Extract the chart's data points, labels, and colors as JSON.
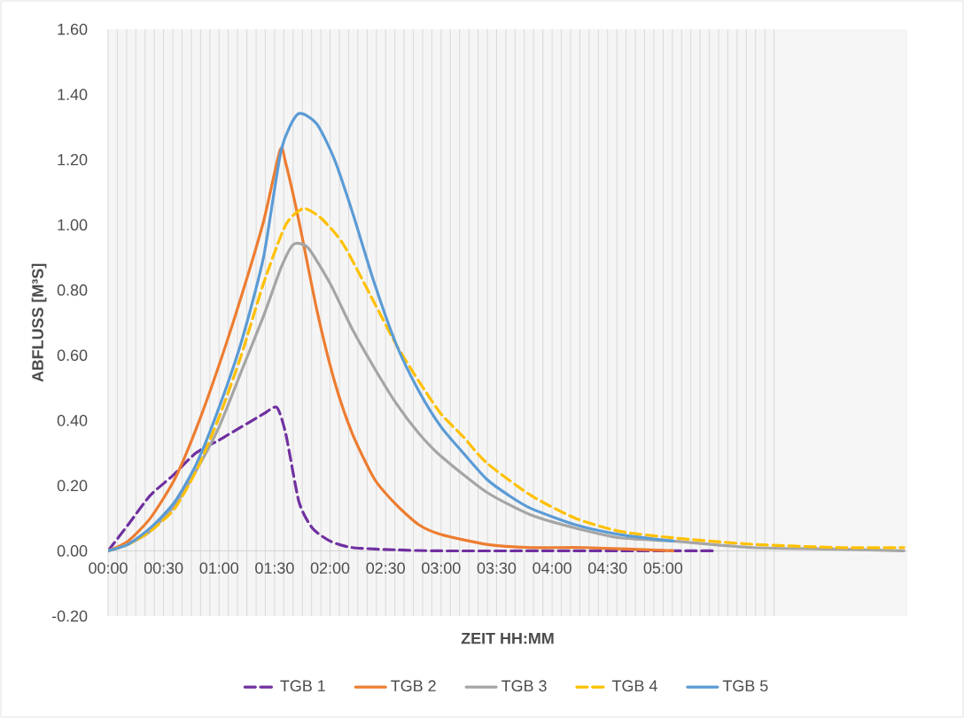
{
  "chart_data": {
    "type": "line",
    "xlabel": "ZEIT HH:MM",
    "ylabel": "ABFLUSS [M³S]",
    "xlim": [
      0,
      7.2
    ],
    "ylim": [
      -0.2,
      1.6
    ],
    "xticks": [
      {
        "value": 0,
        "label": "00:00"
      },
      {
        "value": 0.0833,
        "label": null
      },
      {
        "value": 0.1667,
        "label": null
      },
      {
        "value": 0.25,
        "label": null
      },
      {
        "value": 0.3333,
        "label": null
      },
      {
        "value": 0.4167,
        "label": null
      },
      {
        "value": 0.5,
        "label": "00:30"
      },
      {
        "value": 0.5833,
        "label": null
      },
      {
        "value": 0.6667,
        "label": null
      },
      {
        "value": 0.75,
        "label": null
      },
      {
        "value": 0.8333,
        "label": null
      },
      {
        "value": 0.9167,
        "label": null
      },
      {
        "value": 1,
        "label": "01:00"
      },
      {
        "value": 1.0833,
        "label": null
      },
      {
        "value": 1.1667,
        "label": null
      },
      {
        "value": 1.25,
        "label": null
      },
      {
        "value": 1.3333,
        "label": null
      },
      {
        "value": 1.4167,
        "label": null
      },
      {
        "value": 1.5,
        "label": "01:30"
      },
      {
        "value": 1.5833,
        "label": null
      },
      {
        "value": 1.6667,
        "label": null
      },
      {
        "value": 1.75,
        "label": null
      },
      {
        "value": 1.8333,
        "label": null
      },
      {
        "value": 1.9167,
        "label": null
      },
      {
        "value": 2,
        "label": "02:00"
      },
      {
        "value": 2.0833,
        "label": null
      },
      {
        "value": 2.1667,
        "label": null
      },
      {
        "value": 2.25,
        "label": null
      },
      {
        "value": 2.3333,
        "label": null
      },
      {
        "value": 2.4167,
        "label": null
      },
      {
        "value": 2.5,
        "label": "02:30"
      },
      {
        "value": 2.5833,
        "label": null
      },
      {
        "value": 2.6667,
        "label": null
      },
      {
        "value": 2.75,
        "label": null
      },
      {
        "value": 2.8333,
        "label": null
      },
      {
        "value": 2.9167,
        "label": null
      },
      {
        "value": 3,
        "label": "03:00"
      },
      {
        "value": 3.0833,
        "label": null
      },
      {
        "value": 3.1667,
        "label": null
      },
      {
        "value": 3.25,
        "label": null
      },
      {
        "value": 3.3333,
        "label": null
      },
      {
        "value": 3.4167,
        "label": null
      },
      {
        "value": 3.5,
        "label": "03:30"
      },
      {
        "value": 3.5833,
        "label": null
      },
      {
        "value": 3.6667,
        "label": null
      },
      {
        "value": 3.75,
        "label": null
      },
      {
        "value": 3.8333,
        "label": null
      },
      {
        "value": 3.9167,
        "label": null
      },
      {
        "value": 4,
        "label": "04:00"
      },
      {
        "value": 4.0833,
        "label": null
      },
      {
        "value": 4.1667,
        "label": null
      },
      {
        "value": 4.25,
        "label": null
      },
      {
        "value": 4.3333,
        "label": null
      },
      {
        "value": 4.4167,
        "label": null
      },
      {
        "value": 4.5,
        "label": "04:30"
      },
      {
        "value": 4.5833,
        "label": null
      },
      {
        "value": 4.6667,
        "label": null
      },
      {
        "value": 4.75,
        "label": null
      },
      {
        "value": 4.8333,
        "label": null
      },
      {
        "value": 4.9167,
        "label": null
      },
      {
        "value": 5,
        "label": "05:00"
      },
      {
        "value": 5.0833,
        "label": null
      },
      {
        "value": 5.1667,
        "label": null
      },
      {
        "value": 5.25,
        "label": null
      },
      {
        "value": 5.3333,
        "label": null
      },
      {
        "value": 5.4167,
        "label": null
      },
      {
        "value": 5.5,
        "label": null
      },
      {
        "value": 5.5833,
        "label": null
      },
      {
        "value": 5.6667,
        "label": null
      },
      {
        "value": 5.75,
        "label": null
      },
      {
        "value": 5.8333,
        "label": null
      },
      {
        "value": 5.9167,
        "label": null
      },
      {
        "value": 6,
        "label": null
      }
    ],
    "yticks": [
      {
        "value": -0.2,
        "label": "-0.20"
      },
      {
        "value": 0,
        "label": "0.00"
      },
      {
        "value": 0.2,
        "label": "0.20"
      },
      {
        "value": 0.4,
        "label": "0.40"
      },
      {
        "value": 0.6,
        "label": "0.60"
      },
      {
        "value": 0.8,
        "label": "0.80"
      },
      {
        "value": 1.0,
        "label": "1.00"
      },
      {
        "value": 1.2,
        "label": "1.20"
      },
      {
        "value": 1.4,
        "label": "1.40"
      },
      {
        "value": 1.6,
        "label": "1.60"
      }
    ],
    "grid": "x",
    "legend": "bottom",
    "series": [
      {
        "name": "TGB 1",
        "color": "#7030a0",
        "line_style": "dashed",
        "x": [
          0,
          0.18,
          0.38,
          0.58,
          0.79,
          1.0,
          1.2,
          1.4,
          1.52,
          1.6,
          1.72,
          1.84,
          2.0,
          2.2,
          2.6,
          3.0,
          4.0,
          5.47
        ],
        "values": [
          0,
          0.08,
          0.17,
          0.23,
          0.3,
          0.34,
          0.38,
          0.42,
          0.44,
          0.36,
          0.15,
          0.07,
          0.03,
          0.01,
          0.003,
          0,
          0,
          0
        ]
      },
      {
        "name": "TGB 2",
        "color": "#ed7d31",
        "line_style": "solid",
        "x": [
          0,
          0.18,
          0.38,
          0.6,
          0.8,
          1.0,
          1.2,
          1.4,
          1.55,
          1.6,
          1.72,
          1.88,
          2.04,
          2.2,
          2.4,
          2.6,
          2.8,
          3.0,
          3.41,
          3.81,
          4.29,
          5.09
        ],
        "values": [
          0,
          0.03,
          0.1,
          0.22,
          0.38,
          0.57,
          0.78,
          1.01,
          1.23,
          1.19,
          1.01,
          0.74,
          0.52,
          0.36,
          0.22,
          0.14,
          0.08,
          0.05,
          0.02,
          0.01,
          0.01,
          0
        ]
      },
      {
        "name": "TGB 3",
        "color": "#a5a5a5",
        "line_style": "solid",
        "x": [
          0,
          0.18,
          0.38,
          0.6,
          0.8,
          1.0,
          1.2,
          1.4,
          1.56,
          1.67,
          1.8,
          2.0,
          2.2,
          2.4,
          2.6,
          2.8,
          3.0,
          3.41,
          3.81,
          4.21,
          4.61,
          5.09,
          5.81,
          6.6,
          7.17
        ],
        "values": [
          0,
          0.02,
          0.06,
          0.14,
          0.25,
          0.38,
          0.55,
          0.72,
          0.87,
          0.94,
          0.93,
          0.82,
          0.68,
          0.56,
          0.45,
          0.36,
          0.29,
          0.18,
          0.11,
          0.07,
          0.04,
          0.03,
          0.01,
          0.005,
          0
        ]
      },
      {
        "name": "TGB 4",
        "color": "#ffc000",
        "line_style": "dashed",
        "x": [
          0,
          0.18,
          0.38,
          0.6,
          0.8,
          1.0,
          1.2,
          1.4,
          1.6,
          1.76,
          1.92,
          2.12,
          2.4,
          2.6,
          2.8,
          3.0,
          3.2,
          3.41,
          3.81,
          4.21,
          4.61,
          5.09,
          5.81,
          6.6,
          7.17
        ],
        "values": [
          0,
          0.02,
          0.06,
          0.13,
          0.25,
          0.41,
          0.6,
          0.82,
          1.0,
          1.05,
          1.02,
          0.94,
          0.76,
          0.63,
          0.52,
          0.42,
          0.35,
          0.27,
          0.17,
          0.1,
          0.06,
          0.04,
          0.02,
          0.01,
          0.01
        ]
      },
      {
        "name": "TGB 5",
        "color": "#5b9bd5",
        "line_style": "solid",
        "x": [
          0,
          0.18,
          0.38,
          0.6,
          0.8,
          1.0,
          1.2,
          1.4,
          1.56,
          1.71,
          1.88,
          2.04,
          2.2,
          2.4,
          2.6,
          2.8,
          3.0,
          3.2,
          3.41,
          3.61,
          3.81,
          4.21,
          4.61,
          5.09
        ],
        "values": [
          0,
          0.02,
          0.07,
          0.15,
          0.27,
          0.44,
          0.64,
          0.9,
          1.23,
          1.34,
          1.31,
          1.2,
          1.04,
          0.82,
          0.63,
          0.49,
          0.38,
          0.3,
          0.22,
          0.17,
          0.13,
          0.08,
          0.05,
          0.03
        ]
      }
    ]
  }
}
